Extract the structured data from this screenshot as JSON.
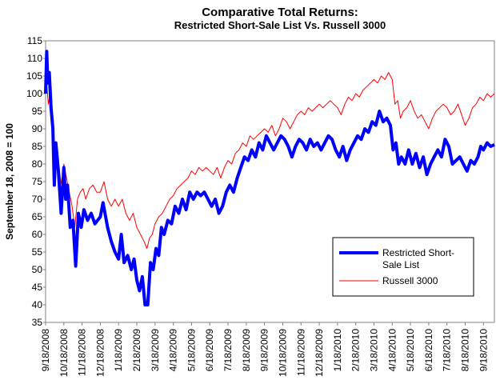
{
  "chart_data": {
    "type": "line",
    "title": "Comparative Total Returns:",
    "subtitle": "Restricted Short-Sale List Vs. Russell 3000",
    "xlabel": "",
    "ylabel": "September 18, 2008 = 100",
    "ylim": [
      35,
      115
    ],
    "yticks": [
      35,
      40,
      45,
      50,
      55,
      60,
      65,
      70,
      75,
      80,
      85,
      90,
      95,
      100,
      105,
      110,
      115
    ],
    "xlim": [
      0,
      24.6
    ],
    "xticks": [
      {
        "x": 0,
        "label": "9/18/2008"
      },
      {
        "x": 1,
        "label": "10/18/2008"
      },
      {
        "x": 2,
        "label": "11/18/2008"
      },
      {
        "x": 3,
        "label": "12/18/2008"
      },
      {
        "x": 4,
        "label": "1/18/2009"
      },
      {
        "x": 5,
        "label": "2/18/2009"
      },
      {
        "x": 6,
        "label": "3/18/2009"
      },
      {
        "x": 7,
        "label": "4/18/2009"
      },
      {
        "x": 8,
        "label": "5/18/2009"
      },
      {
        "x": 9,
        "label": "6/18/2009"
      },
      {
        "x": 10,
        "label": "7/18/2009"
      },
      {
        "x": 11,
        "label": "8/18/2009"
      },
      {
        "x": 12,
        "label": "9/18/2009"
      },
      {
        "x": 13,
        "label": "10/18/2009"
      },
      {
        "x": 14,
        "label": "11/18/2009"
      },
      {
        "x": 15,
        "label": "12/18/2009"
      },
      {
        "x": 16,
        "label": "1/18/2010"
      },
      {
        "x": 17,
        "label": "2/18/2010"
      },
      {
        "x": 18,
        "label": "3/18/2010"
      },
      {
        "x": 19,
        "label": "4/18/2010"
      },
      {
        "x": 20,
        "label": "5/18/2010"
      },
      {
        "x": 21,
        "label": "6/18/2010"
      },
      {
        "x": 22,
        "label": "7/18/2010"
      },
      {
        "x": 23,
        "label": "8/18/2010"
      },
      {
        "x": 24,
        "label": "9/18/2010"
      }
    ],
    "legend_position": "bottom-right",
    "series": [
      {
        "name": "Restricted Short-Sale List",
        "color": "#0000ff",
        "points": [
          [
            0,
            100
          ],
          [
            0.06,
            112
          ],
          [
            0.12,
            103
          ],
          [
            0.2,
            106
          ],
          [
            0.3,
            96
          ],
          [
            0.4,
            90
          ],
          [
            0.48,
            74
          ],
          [
            0.56,
            86
          ],
          [
            0.7,
            78
          ],
          [
            0.85,
            66
          ],
          [
            1.0,
            79
          ],
          [
            1.1,
            70
          ],
          [
            1.2,
            74
          ],
          [
            1.35,
            62
          ],
          [
            1.5,
            64
          ],
          [
            1.65,
            51
          ],
          [
            1.8,
            66
          ],
          [
            1.95,
            62
          ],
          [
            2.1,
            67
          ],
          [
            2.3,
            64
          ],
          [
            2.5,
            66
          ],
          [
            2.7,
            63
          ],
          [
            3.0,
            65
          ],
          [
            3.15,
            69
          ],
          [
            3.4,
            62
          ],
          [
            3.6,
            58
          ],
          [
            3.8,
            55
          ],
          [
            4.0,
            53
          ],
          [
            4.15,
            60
          ],
          [
            4.3,
            52
          ],
          [
            4.5,
            54
          ],
          [
            4.7,
            50
          ],
          [
            4.85,
            53
          ],
          [
            5.0,
            47
          ],
          [
            5.15,
            44
          ],
          [
            5.3,
            48
          ],
          [
            5.45,
            40
          ],
          [
            5.6,
            40
          ],
          [
            5.75,
            52
          ],
          [
            5.9,
            50
          ],
          [
            6.05,
            56
          ],
          [
            6.2,
            54
          ],
          [
            6.35,
            62
          ],
          [
            6.5,
            60
          ],
          [
            6.7,
            64
          ],
          [
            6.9,
            63
          ],
          [
            7.1,
            68
          ],
          [
            7.3,
            66
          ],
          [
            7.5,
            70
          ],
          [
            7.7,
            67
          ],
          [
            7.9,
            72
          ],
          [
            8.1,
            70
          ],
          [
            8.3,
            72
          ],
          [
            8.5,
            71
          ],
          [
            8.7,
            72
          ],
          [
            8.9,
            70
          ],
          [
            9.1,
            68
          ],
          [
            9.3,
            70
          ],
          [
            9.5,
            66
          ],
          [
            9.7,
            68
          ],
          [
            9.9,
            72
          ],
          [
            10.1,
            74
          ],
          [
            10.3,
            72
          ],
          [
            10.5,
            76
          ],
          [
            10.7,
            79
          ],
          [
            10.9,
            82
          ],
          [
            11.1,
            81
          ],
          [
            11.3,
            84
          ],
          [
            11.5,
            82
          ],
          [
            11.7,
            86
          ],
          [
            11.9,
            84
          ],
          [
            12.1,
            88
          ],
          [
            12.3,
            86
          ],
          [
            12.5,
            84
          ],
          [
            12.7,
            86
          ],
          [
            12.9,
            88
          ],
          [
            13.1,
            87
          ],
          [
            13.3,
            85
          ],
          [
            13.5,
            82
          ],
          [
            13.7,
            85
          ],
          [
            13.9,
            87
          ],
          [
            14.1,
            86
          ],
          [
            14.3,
            84
          ],
          [
            14.5,
            87
          ],
          [
            14.7,
            85
          ],
          [
            14.9,
            86
          ],
          [
            15.1,
            84
          ],
          [
            15.3,
            86
          ],
          [
            15.5,
            88
          ],
          [
            15.7,
            87
          ],
          [
            15.9,
            84
          ],
          [
            16.1,
            82
          ],
          [
            16.3,
            85
          ],
          [
            16.5,
            81
          ],
          [
            16.7,
            84
          ],
          [
            16.9,
            86
          ],
          [
            17.1,
            88
          ],
          [
            17.3,
            87
          ],
          [
            17.5,
            90
          ],
          [
            17.7,
            89
          ],
          [
            17.9,
            92
          ],
          [
            18.1,
            91
          ],
          [
            18.3,
            95
          ],
          [
            18.5,
            92
          ],
          [
            18.7,
            93
          ],
          [
            18.9,
            91
          ],
          [
            19.05,
            84
          ],
          [
            19.2,
            86
          ],
          [
            19.35,
            80
          ],
          [
            19.5,
            82
          ],
          [
            19.7,
            80
          ],
          [
            19.9,
            84
          ],
          [
            20.1,
            80
          ],
          [
            20.3,
            83
          ],
          [
            20.5,
            79
          ],
          [
            20.7,
            82
          ],
          [
            20.9,
            77
          ],
          [
            21.1,
            80
          ],
          [
            21.3,
            82
          ],
          [
            21.5,
            84
          ],
          [
            21.7,
            82
          ],
          [
            21.9,
            87
          ],
          [
            22.1,
            85
          ],
          [
            22.3,
            80
          ],
          [
            22.5,
            81
          ],
          [
            22.7,
            82
          ],
          [
            22.9,
            80
          ],
          [
            23.1,
            78
          ],
          [
            23.3,
            81
          ],
          [
            23.5,
            80
          ],
          [
            23.7,
            82
          ],
          [
            23.85,
            85
          ],
          [
            24.0,
            84
          ],
          [
            24.2,
            86
          ],
          [
            24.4,
            85
          ],
          [
            24.6,
            85.5
          ]
        ]
      },
      {
        "name": "Russell 3000",
        "color": "#ff0000",
        "points": [
          [
            0,
            100
          ],
          [
            0.06,
            103
          ],
          [
            0.15,
            97
          ],
          [
            0.25,
            100
          ],
          [
            0.35,
            92
          ],
          [
            0.45,
            85
          ],
          [
            0.52,
            75
          ],
          [
            0.62,
            82
          ],
          [
            0.75,
            78
          ],
          [
            0.88,
            74
          ],
          [
            1.0,
            80
          ],
          [
            1.15,
            76
          ],
          [
            1.3,
            72
          ],
          [
            1.45,
            68
          ],
          [
            1.6,
            62
          ],
          [
            1.75,
            70
          ],
          [
            1.9,
            72
          ],
          [
            2.05,
            73
          ],
          [
            2.2,
            70
          ],
          [
            2.4,
            73
          ],
          [
            2.6,
            74
          ],
          [
            2.8,
            72
          ],
          [
            3.0,
            72
          ],
          [
            3.2,
            75
          ],
          [
            3.4,
            70
          ],
          [
            3.6,
            68
          ],
          [
            3.8,
            70
          ],
          [
            4.0,
            68
          ],
          [
            4.2,
            70
          ],
          [
            4.4,
            66
          ],
          [
            4.6,
            64
          ],
          [
            4.8,
            66
          ],
          [
            5.0,
            62
          ],
          [
            5.2,
            60
          ],
          [
            5.4,
            58
          ],
          [
            5.55,
            56
          ],
          [
            5.7,
            59
          ],
          [
            5.85,
            60
          ],
          [
            6.0,
            63
          ],
          [
            6.2,
            65
          ],
          [
            6.4,
            66
          ],
          [
            6.6,
            68
          ],
          [
            6.8,
            70
          ],
          [
            7.0,
            71
          ],
          [
            7.2,
            73
          ],
          [
            7.4,
            74
          ],
          [
            7.6,
            75
          ],
          [
            7.8,
            76
          ],
          [
            8.0,
            78
          ],
          [
            8.2,
            77
          ],
          [
            8.4,
            79
          ],
          [
            8.6,
            78
          ],
          [
            8.8,
            79
          ],
          [
            9.0,
            78
          ],
          [
            9.2,
            77
          ],
          [
            9.4,
            79
          ],
          [
            9.6,
            76
          ],
          [
            9.8,
            79
          ],
          [
            10.0,
            81
          ],
          [
            10.2,
            80
          ],
          [
            10.4,
            83
          ],
          [
            10.6,
            84
          ],
          [
            10.8,
            86
          ],
          [
            11.0,
            85
          ],
          [
            11.2,
            88
          ],
          [
            11.4,
            87
          ],
          [
            11.6,
            88
          ],
          [
            11.8,
            89
          ],
          [
            12.0,
            90
          ],
          [
            12.2,
            89
          ],
          [
            12.4,
            91
          ],
          [
            12.6,
            88
          ],
          [
            12.8,
            90
          ],
          [
            13.0,
            93
          ],
          [
            13.2,
            92
          ],
          [
            13.4,
            90
          ],
          [
            13.6,
            92
          ],
          [
            13.8,
            94
          ],
          [
            14.0,
            95
          ],
          [
            14.2,
            94
          ],
          [
            14.4,
            96
          ],
          [
            14.6,
            95
          ],
          [
            14.8,
            96
          ],
          [
            15.0,
            97
          ],
          [
            15.2,
            96
          ],
          [
            15.4,
            97
          ],
          [
            15.6,
            98
          ],
          [
            15.8,
            97
          ],
          [
            16.0,
            96
          ],
          [
            16.2,
            94
          ],
          [
            16.4,
            97
          ],
          [
            16.6,
            99
          ],
          [
            16.8,
            98
          ],
          [
            17.0,
            100
          ],
          [
            17.2,
            99
          ],
          [
            17.4,
            101
          ],
          [
            17.6,
            102
          ],
          [
            17.8,
            103
          ],
          [
            18.0,
            104
          ],
          [
            18.2,
            103
          ],
          [
            18.4,
            105
          ],
          [
            18.6,
            104
          ],
          [
            18.8,
            106
          ],
          [
            19.0,
            104
          ],
          [
            19.15,
            97
          ],
          [
            19.3,
            98
          ],
          [
            19.45,
            93
          ],
          [
            19.6,
            95
          ],
          [
            19.8,
            96
          ],
          [
            20.0,
            98
          ],
          [
            20.2,
            95
          ],
          [
            20.4,
            93
          ],
          [
            20.6,
            94
          ],
          [
            20.8,
            92
          ],
          [
            21.0,
            90
          ],
          [
            21.2,
            93
          ],
          [
            21.4,
            95
          ],
          [
            21.6,
            96
          ],
          [
            21.8,
            97
          ],
          [
            22.0,
            96
          ],
          [
            22.2,
            94
          ],
          [
            22.4,
            95
          ],
          [
            22.6,
            97
          ],
          [
            22.8,
            94
          ],
          [
            23.0,
            91
          ],
          [
            23.2,
            93
          ],
          [
            23.4,
            96
          ],
          [
            23.6,
            97
          ],
          [
            23.8,
            99
          ],
          [
            24.0,
            98
          ],
          [
            24.2,
            100
          ],
          [
            24.4,
            99
          ],
          [
            24.6,
            100
          ]
        ]
      }
    ]
  }
}
